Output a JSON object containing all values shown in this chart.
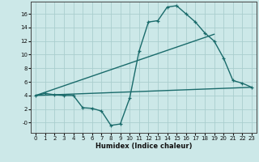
{
  "xlabel": "Humidex (Indice chaleur)",
  "bg_color": "#cce8e8",
  "line_color": "#1a6b6b",
  "grid_color": "#aacece",
  "xlim": [
    -0.5,
    23.5
  ],
  "ylim": [
    -1.5,
    17.8
  ],
  "xticks": [
    0,
    1,
    2,
    3,
    4,
    5,
    6,
    7,
    8,
    9,
    10,
    11,
    12,
    13,
    14,
    15,
    16,
    17,
    18,
    19,
    20,
    21,
    22,
    23
  ],
  "yticks": [
    0,
    2,
    4,
    6,
    8,
    10,
    12,
    14,
    16
  ],
  "ytick_labels": [
    "-0",
    "2",
    "4",
    "6",
    "8",
    "10",
    "12",
    "14",
    "16"
  ],
  "line1_x": [
    0,
    1,
    2,
    3,
    4,
    5,
    6,
    7,
    8,
    9,
    10,
    11,
    12,
    13,
    14,
    15,
    16,
    17,
    18,
    19,
    20,
    21,
    22,
    23
  ],
  "line1_y": [
    4.0,
    4.3,
    4.1,
    4.0,
    4.0,
    2.2,
    2.1,
    1.7,
    -0.4,
    -0.2,
    3.6,
    10.5,
    14.8,
    15.0,
    17.0,
    17.2,
    16.0,
    14.8,
    13.2,
    12.0,
    9.5,
    6.2,
    5.8,
    5.2
  ],
  "line2_x": [
    0,
    19
  ],
  "line2_y": [
    4.0,
    13.0
  ],
  "line3_x": [
    0,
    23
  ],
  "line3_y": [
    4.0,
    5.2
  ]
}
